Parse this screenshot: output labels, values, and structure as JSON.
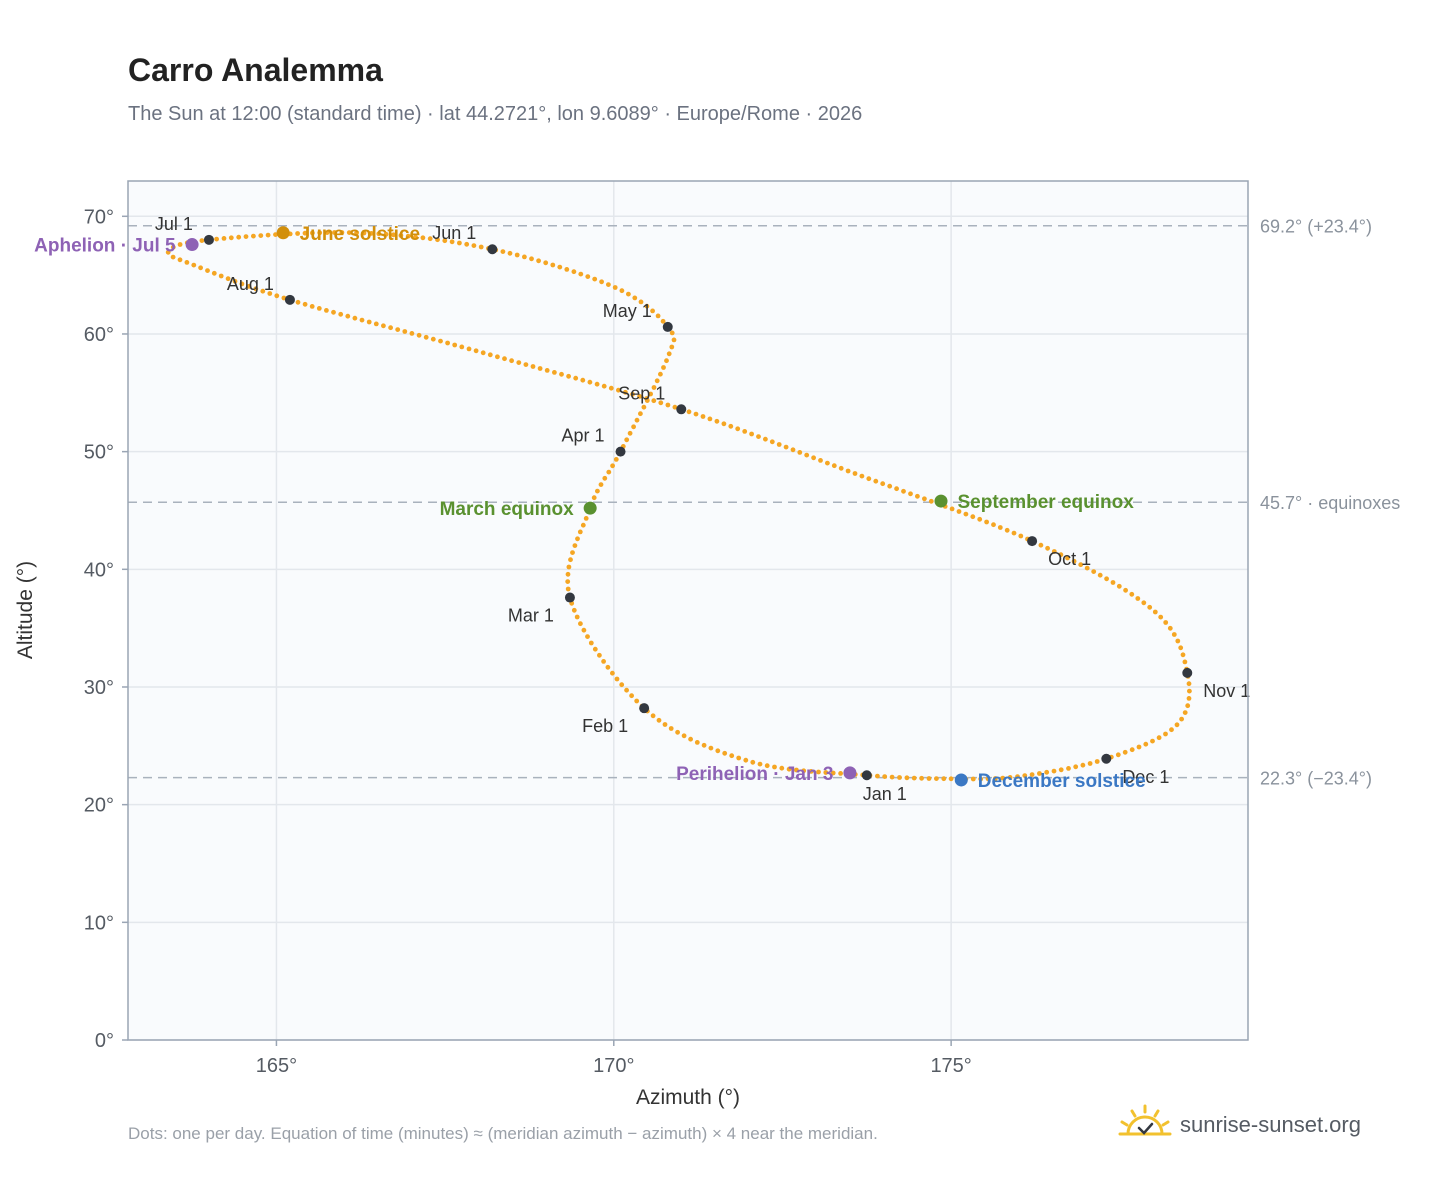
{
  "header": {
    "title": "Carro Analemma",
    "subtitle": "The Sun at 12:00 (standard time) · lat 44.2721°, lon 9.6089° · Europe/Rome · 2026"
  },
  "footer": {
    "note": "Dots: one per day. Equation of time (minutes) ≈ (meridian azimuth − azimuth) × 4 near the meridian.",
    "brand": "sunrise-sunset.org"
  },
  "colors": {
    "curve": "#f5a623",
    "month_marker": "#333840",
    "aphelion": "#8e62b5",
    "perihelion": "#8e62b5",
    "june_solstice": "#d28f0b",
    "december_solstice": "#3b78c4",
    "equinox": "#5a9130",
    "plot_bg": "#f9fbfd",
    "grid": "#e3e7ec",
    "frame": "#9aa5b4"
  },
  "chart_data": {
    "type": "scatter",
    "xlabel": "Azimuth (°)",
    "ylabel": "Altitude (°)",
    "xlim": [
      162.8,
      179.4
    ],
    "ylim": [
      0,
      73
    ],
    "x_ticks": [
      {
        "value": 165,
        "label": "165°"
      },
      {
        "value": 170,
        "label": "170°"
      },
      {
        "value": 175,
        "label": "175°"
      }
    ],
    "y_ticks": [
      {
        "value": 0,
        "label": "0°"
      },
      {
        "value": 10,
        "label": "10°"
      },
      {
        "value": 20,
        "label": "20°"
      },
      {
        "value": 30,
        "label": "30°"
      },
      {
        "value": 40,
        "label": "40°"
      },
      {
        "value": 50,
        "label": "50°"
      },
      {
        "value": 60,
        "label": "60°"
      },
      {
        "value": 70,
        "label": "70°"
      }
    ],
    "grid": true,
    "reference_lines": [
      {
        "y": 69.2,
        "label": "69.2° (+23.4°)"
      },
      {
        "y": 45.7,
        "label": "45.7° · equinoxes"
      },
      {
        "y": 22.3,
        "label": "22.3° (−23.4°)"
      }
    ],
    "month_points": [
      {
        "label": "Jan 1",
        "az": 173.75,
        "alt": 22.5,
        "label_pos": "below"
      },
      {
        "label": "Feb 1",
        "az": 170.45,
        "alt": 28.2,
        "label_pos": "below-left"
      },
      {
        "label": "Mar 1",
        "az": 169.35,
        "alt": 37.6,
        "label_pos": "below-left"
      },
      {
        "label": "Apr 1",
        "az": 170.1,
        "alt": 50.0,
        "label_pos": "above-left"
      },
      {
        "label": "May 1",
        "az": 170.8,
        "alt": 60.6,
        "label_pos": "above-left"
      },
      {
        "label": "Jun 1",
        "az": 168.2,
        "alt": 67.2,
        "label_pos": "above-left"
      },
      {
        "label": "Jul 1",
        "az": 164.0,
        "alt": 68.0,
        "label_pos": "above-left"
      },
      {
        "label": "Aug 1",
        "az": 165.2,
        "alt": 62.9,
        "label_pos": "above-left"
      },
      {
        "label": "Sep 1",
        "az": 171.0,
        "alt": 53.6,
        "label_pos": "above-left"
      },
      {
        "label": "Oct 1",
        "az": 176.2,
        "alt": 42.4,
        "label_pos": "below-right"
      },
      {
        "label": "Nov 1",
        "az": 178.5,
        "alt": 31.2,
        "label_pos": "below-right"
      },
      {
        "label": "Dec 1",
        "az": 177.3,
        "alt": 23.9,
        "label_pos": "below-right"
      }
    ],
    "special_points": [
      {
        "label": "Aphelion · Jul 5",
        "az": 163.75,
        "alt": 67.6,
        "color_key": "aphelion",
        "label_pos": "left"
      },
      {
        "label": "June solstice",
        "az": 165.1,
        "alt": 68.6,
        "color_key": "june_solstice",
        "label_pos": "right"
      },
      {
        "label": "March equinox",
        "az": 169.65,
        "alt": 45.2,
        "color_key": "equinox",
        "label_pos": "left"
      },
      {
        "label": "September equinox",
        "az": 174.85,
        "alt": 45.8,
        "color_key": "equinox",
        "label_pos": "right"
      },
      {
        "label": "Perihelion · Jan 3",
        "az": 173.5,
        "alt": 22.7,
        "color_key": "perihelion",
        "label_pos": "left"
      },
      {
        "label": "December solstice",
        "az": 175.15,
        "alt": 22.1,
        "color_key": "december_solstice",
        "label_pos": "right"
      }
    ],
    "curve_control_points": [
      {
        "az": 175.0,
        "alt": 22.2
      },
      {
        "az": 173.75,
        "alt": 22.5
      },
      {
        "az": 172.0,
        "alt": 23.7
      },
      {
        "az": 170.45,
        "alt": 28.2
      },
      {
        "az": 169.35,
        "alt": 37.6
      },
      {
        "az": 169.65,
        "alt": 45.2
      },
      {
        "az": 170.1,
        "alt": 50.0
      },
      {
        "az": 170.8,
        "alt": 58.0
      },
      {
        "az": 170.8,
        "alt": 60.6
      },
      {
        "az": 170.0,
        "alt": 64.0
      },
      {
        "az": 168.2,
        "alt": 67.2
      },
      {
        "az": 166.2,
        "alt": 68.6
      },
      {
        "az": 164.0,
        "alt": 68.0
      },
      {
        "az": 163.4,
        "alt": 67.0
      },
      {
        "az": 163.8,
        "alt": 65.8
      },
      {
        "az": 165.2,
        "alt": 62.9
      },
      {
        "az": 168.0,
        "alt": 58.5
      },
      {
        "az": 171.0,
        "alt": 53.6
      },
      {
        "az": 173.5,
        "alt": 48.3
      },
      {
        "az": 176.2,
        "alt": 42.4
      },
      {
        "az": 178.0,
        "alt": 36.5
      },
      {
        "az": 178.5,
        "alt": 31.2
      },
      {
        "az": 178.35,
        "alt": 26.8
      },
      {
        "az": 177.3,
        "alt": 23.9
      },
      {
        "az": 176.0,
        "alt": 22.4
      }
    ]
  }
}
